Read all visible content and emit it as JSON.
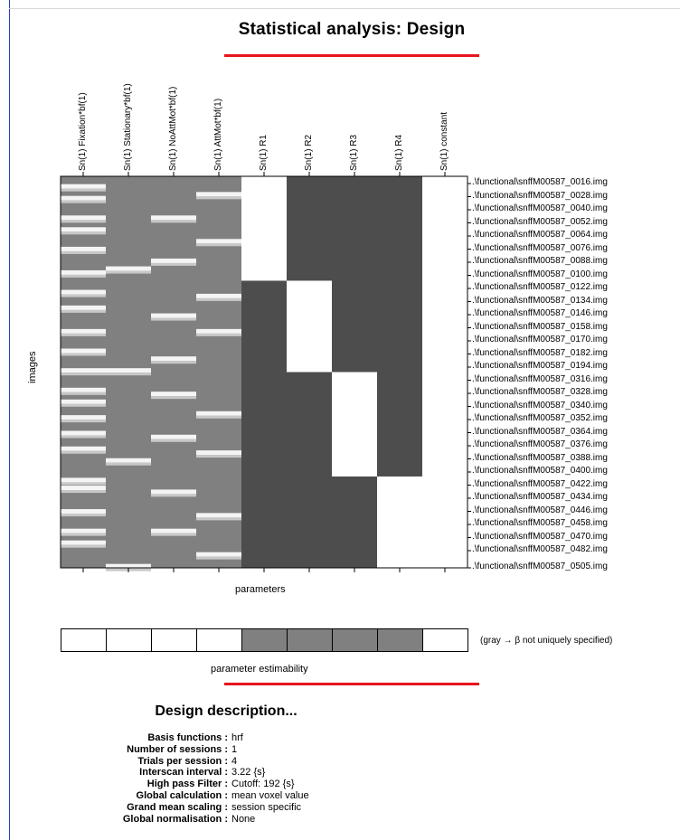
{
  "title": "Statistical analysis: Design",
  "columns": [
    "Sn(1) Fixation*bf(1)",
    "Sn(1) Stationary*bf(1)",
    "Sn(1) NoAttMot*bf(1)",
    "Sn(1) AttMot*bf(1)",
    "Sn(1) R1",
    "Sn(1) R2",
    "Sn(1) R3",
    "Sn(1) R4",
    "Sn(1) constant"
  ],
  "row_labels": [
    ".\\functional\\snffM00587_0016.img",
    ".\\functional\\snffM00587_0028.img",
    ".\\functional\\snffM00587_0040.img",
    ".\\functional\\snffM00587_0052.img",
    ".\\functional\\snffM00587_0064.img",
    ".\\functional\\snffM00587_0076.img",
    ".\\functional\\snffM00587_0088.img",
    ".\\functional\\snffM00587_0100.img",
    ".\\functional\\snffM00587_0122.img",
    ".\\functional\\snffM00587_0134.img",
    ".\\functional\\snffM00587_0146.img",
    ".\\functional\\snffM00587_0158.img",
    ".\\functional\\snffM00587_0170.img",
    ".\\functional\\snffM00587_0182.img",
    ".\\functional\\snffM00587_0194.img",
    ".\\functional\\snffM00587_0316.img",
    ".\\functional\\snffM00587_0328.img",
    ".\\functional\\snffM00587_0340.img",
    ".\\functional\\snffM00587_0352.img",
    ".\\functional\\snffM00587_0364.img",
    ".\\functional\\snffM00587_0376.img",
    ".\\functional\\snffM00587_0388.img",
    ".\\functional\\snffM00587_0400.img",
    ".\\functional\\snffM00587_0422.img",
    ".\\functional\\snffM00587_0434.img",
    ".\\functional\\snffM00587_0446.img",
    ".\\functional\\snffM00587_0458.img",
    ".\\functional\\snffM00587_0470.img",
    ".\\functional\\snffM00587_0482.img",
    ".\\functional\\snffM00587_0505.img"
  ],
  "y_axis_label": "images",
  "x_axis_label": "parameters",
  "estimability": {
    "label": "parameter estimability",
    "note": "(gray → β not uniquely specified)",
    "cells": [
      "white",
      "white",
      "white",
      "white",
      "gray",
      "gray",
      "gray",
      "gray",
      "white"
    ]
  },
  "description": {
    "title": "Design description...",
    "rows": [
      {
        "key": "Basis functions :",
        "value": "hrf"
      },
      {
        "key": "Number of sessions :",
        "value": "1"
      },
      {
        "key": "Trials per session :",
        "value": "4"
      },
      {
        "key": "Interscan interval :",
        "value": "3.22 {s}"
      },
      {
        "key": "High pass Filter :",
        "value": "Cutoff: 192 {s}"
      },
      {
        "key": "Global calculation :",
        "value": "mean voxel value"
      },
      {
        "key": "Grand mean scaling :",
        "value": "session specific"
      },
      {
        "key": "Global normalisation :",
        "value": "None"
      }
    ]
  },
  "colors": {
    "task_gray": "#808080",
    "dark": "#4d4d4d",
    "white": "#ffffff",
    "accent_red": "#e8141c",
    "estim_gray": "#808080"
  },
  "design_matrix": {
    "scan_count": 30,
    "session_blocks": [
      {
        "column": "Sn(1) R1",
        "first_image": "0016",
        "last_image": "0100"
      },
      {
        "column": "Sn(1) R2",
        "first_image": "0122",
        "last_image": "0194"
      },
      {
        "column": "Sn(1) R3",
        "first_image": "0316",
        "last_image": "0400"
      },
      {
        "column": "Sn(1) R4",
        "first_image": "0422",
        "last_image": "0505"
      }
    ],
    "regressor_stripes": {
      "Sn(1) Fixation*bf(1)": [
        0.02,
        0.05,
        0.1,
        0.13,
        0.18,
        0.24,
        0.29,
        0.33,
        0.39,
        0.44,
        0.49,
        0.54,
        0.57,
        0.61,
        0.65,
        0.69,
        0.77,
        0.79,
        0.85,
        0.9,
        0.93
      ],
      "Sn(1) Stationary*bf(1)": [
        0.23,
        0.49,
        0.72,
        0.99
      ],
      "Sn(1) NoAttMot*bf(1)": [
        0.1,
        0.21,
        0.35,
        0.46,
        0.55,
        0.66,
        0.8,
        0.9
      ],
      "Sn(1) AttMot*bf(1)": [
        0.04,
        0.16,
        0.3,
        0.39,
        0.6,
        0.7,
        0.86,
        0.96
      ]
    }
  }
}
